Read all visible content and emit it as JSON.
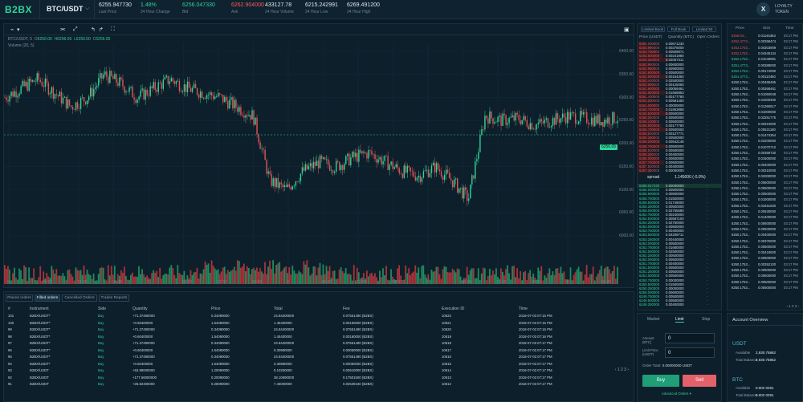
{
  "header": {
    "logo": "B2BX",
    "pair": "BTC/USDT",
    "stats": [
      {
        "value": "6255.947730",
        "label": "Last Price",
        "color": "#dfe8ee"
      },
      {
        "value": "1.48%",
        "label": "24 Hour Change",
        "color": "#2fd39a"
      },
      {
        "value": "6256.047330",
        "label": "Bid",
        "color": "#2fd39a"
      },
      {
        "value": "6262.904000",
        "label": "Ask",
        "color": "#ff5a5a"
      },
      {
        "value": "433127.78",
        "label": "24 Hour Volume",
        "color": "#dfe8ee"
      },
      {
        "value": "6215.242991",
        "label": "24 Hour Low",
        "color": "#dfe8ee"
      },
      {
        "value": "6269.491200",
        "label": "24 Hour High",
        "color": "#dfe8ee"
      }
    ],
    "loyalty": {
      "badge": "X",
      "line1": "LOYALTY",
      "line2": "TOKEN"
    }
  },
  "chart": {
    "toolbar": [
      "⌁",
      "▾",
      "⫘",
      "⤢",
      "↰",
      "↱",
      "⛶"
    ],
    "info": {
      "title": "BTC/USDT, 5",
      "o": "6250.00",
      "h": "6256.05",
      "l": "6250.00",
      "c": "6256.05"
    },
    "volume": "Volume (20, 5)",
    "price_tag": "6256.05",
    "x_ticks": [
      "9",
      "06:00",
      "12:00",
      "18:00",
      "2",
      "06:00",
      "12:00",
      "18:00",
      "3",
      "06:00",
      "12:00",
      "18:00",
      "4",
      "06:00",
      "12:00",
      "18:00",
      "5",
      "06:00"
    ],
    "y_ticks": [
      "6400.00",
      "6350.00",
      "6300.00",
      "6250.00",
      "6200.00",
      "6150.00",
      "6100.00",
      "6050.00",
      "6000.00"
    ]
  },
  "chart_data": {
    "type": "candlestick",
    "title": "BTC/USDT, 5",
    "series": [
      {
        "name": "BTC/USDT",
        "close": [
          6300,
          6320,
          6340,
          6310,
          6280,
          6300,
          6350,
          6330,
          6300,
          6320,
          6340,
          6320,
          6310,
          6300,
          6280,
          6260,
          6120,
          6100,
          6140,
          6160,
          6150,
          6170,
          6180,
          6160,
          6140,
          6130,
          6150,
          6120,
          6080,
          6260,
          6250,
          6255,
          6240,
          6250,
          6260,
          6255,
          6250,
          6256
        ]
      }
    ]
  },
  "orderbook": {
    "tabs": [
      "Limited Book",
      "Full Book",
      "Limited 50"
    ],
    "headers": [
      "Price (USDT)",
      "Quantity (BTC)",
      "Open Orders"
    ],
    "sells": [
      [
        "6264.000000",
        "0.00571230"
      ],
      [
        "6263.990000",
        "0.00375000"
      ],
      [
        "6263.750000",
        "0.00509971"
      ],
      [
        "6263.500000",
        "0.00241980"
      ],
      [
        "6263.250000",
        "0.02057311"
      ],
      [
        "6262.990000",
        "0.00600000"
      ],
      [
        "6262.950000",
        "0.00900000"
      ],
      [
        "6262.800000",
        "0.00500000"
      ],
      [
        "6262.500000",
        "0.00154350"
      ],
      [
        "6262.400000",
        "0.02500000"
      ],
      [
        "6262.000000",
        "0.00125050"
      ],
      [
        "6261.900000",
        "0.00059461"
      ],
      [
        "6261.550000",
        "0.01558853"
      ],
      [
        "6261.400000",
        "0.00177780"
      ],
      [
        "6261.200000",
        "0.00581450"
      ],
      [
        "6261.000000",
        "0.00000000"
      ],
      [
        "6260.750000",
        "0.01853858"
      ],
      [
        "6260.500000",
        "0.00500000"
      ],
      [
        "6260.250000",
        "0.00500000"
      ],
      [
        "6260.100000",
        "0.00500000"
      ],
      [
        "6259.900000",
        "0.00177780"
      ],
      [
        "6259.700000",
        "0.00500000"
      ],
      [
        "6259.500000",
        "0.00127771"
      ],
      [
        "6259.250000",
        "0.00500000"
      ],
      [
        "6259.000000",
        "0.00542148"
      ],
      [
        "6258.750000",
        "0.00500000"
      ],
      [
        "6258.500000",
        "0.00500000"
      ],
      [
        "6258.250000",
        "0.00400000"
      ],
      [
        "6258.000000",
        "0.00500000"
      ],
      [
        "6257.750000",
        "0.00500000"
      ],
      [
        "6257.500000",
        "0.00400000"
      ],
      [
        "6257.250000",
        "0.00000000"
      ]
    ],
    "spread": {
      "left": "spread",
      "right": "1.145000 (-0.0%)"
    },
    "buys": [
      [
        "6256.047330",
        "0.00000000"
      ],
      [
        "6256.000000",
        "0.00500000"
      ],
      [
        "6255.900000",
        "0.00500000"
      ],
      [
        "6255.750000",
        "0.01500000"
      ],
      [
        "6255.500000",
        "0.01748000"
      ],
      [
        "6255.250000",
        "0.00500000"
      ],
      [
        "6255.000000",
        "0.02765580"
      ],
      [
        "6254.750000",
        "0.00240000"
      ],
      [
        "6254.500000",
        "0.00587100"
      ],
      [
        "6254.250000",
        "0.02750000"
      ],
      [
        "6254.000000",
        "0.00800000"
      ],
      [
        "6253.750000",
        "0.00400000"
      ],
      [
        "6253.500000",
        "0.04208711"
      ],
      [
        "6253.250000",
        "0.00440000"
      ],
      [
        "6253.000000",
        "0.00500000"
      ],
      [
        "6252.750000",
        "0.01680000"
      ],
      [
        "6252.500000",
        "0.02500000"
      ],
      [
        "6252.250000",
        "0.00500000"
      ],
      [
        "6252.000000",
        "0.00500000"
      ],
      [
        "6251.750000",
        "0.00400000"
      ],
      [
        "6251.500000",
        "0.00500000"
      ],
      [
        "6251.250000",
        "0.00500000"
      ],
      [
        "6251.000000",
        "0.00500000"
      ],
      [
        "6250.750000",
        "0.00000000"
      ],
      [
        "6250.500000",
        "0.01500000"
      ],
      [
        "6250.250000",
        "0.00000000"
      ],
      [
        "6250.000000",
        "0.00600000"
      ],
      [
        "6249.750000",
        "0.00500000"
      ],
      [
        "6249.500000",
        "0.00500000"
      ],
      [
        "6249.250000",
        "0.00400000"
      ]
    ]
  },
  "trades": {
    "headers": [
      "Price",
      "Size",
      "Time"
    ],
    "rows": [
      [
        "6256.04...",
        "0.01145363",
        "03:17 PM",
        "sell"
      ],
      [
        "6252.4773...",
        "0.00358474",
        "03:17 PM",
        "sell"
      ],
      [
        "6252.1753...",
        "0.00303909",
        "03:17 PM",
        "sell"
      ],
      [
        "6252.1753...",
        "0.04345134",
        "03:17 PM",
        "sell"
      ],
      [
        "6252.1753...",
        "0.01049991",
        "03:17 PM",
        "buy"
      ],
      [
        "6251.4773...",
        "0.00388000",
        "03:17 PM",
        "buy"
      ],
      [
        "6252.1753...",
        "0.00174000",
        "03:17 PM",
        "buy"
      ],
      [
        "6251.4773...",
        "0.00110450",
        "03:17 PM",
        "buy"
      ],
      [
        "6250.1753...",
        "0.00486465",
        "03:17 PM",
        "neutral"
      ],
      [
        "6250.1753...",
        "0.00368461",
        "03:17 PM",
        "neutral"
      ],
      [
        "6250.1753...",
        "0.01050048",
        "03:17 PM",
        "neutral"
      ],
      [
        "6250.1753...",
        "0.01000300",
        "03:17 PM",
        "neutral"
      ],
      [
        "6250.1753...",
        "0.01360617",
        "03:17 PM",
        "neutral"
      ],
      [
        "6250.1753...",
        "0.01000000",
        "03:17 PM",
        "neutral"
      ],
      [
        "6250.1753...",
        "0.03251775",
        "03:17 PM",
        "neutral"
      ],
      [
        "6250.1753...",
        "0.00310000",
        "03:17 PM",
        "neutral"
      ],
      [
        "6250.1753...",
        "0.00521180",
        "03:17 PM",
        "neutral"
      ],
      [
        "6250.1753...",
        "0.01474354",
        "03:17 PM",
        "neutral"
      ],
      [
        "6250.1753...",
        "0.02200000",
        "03:17 PM",
        "neutral"
      ],
      [
        "6250.1753...",
        "0.01070710",
        "03:17 PM",
        "neutral"
      ],
      [
        "6250.1753...",
        "0.00359730",
        "03:17 PM",
        "neutral"
      ],
      [
        "6250.1753...",
        "0.01500000",
        "03:17 PM",
        "neutral"
      ],
      [
        "6250.1753...",
        "0.00400000",
        "03:17 PM",
        "neutral"
      ],
      [
        "6250.1753...",
        "0.00310000",
        "03:17 PM",
        "neutral"
      ],
      [
        "6250.1753...",
        "0.02000000",
        "03:17 PM",
        "neutral"
      ],
      [
        "6250.1753...",
        "0.00600000",
        "03:17 PM",
        "neutral"
      ],
      [
        "6250.1753...",
        "0.00500000",
        "03:17 PM",
        "neutral"
      ],
      [
        "6250.1753...",
        "0.00500000",
        "03:17 PM",
        "neutral"
      ],
      [
        "6250.1753...",
        "0.01000000",
        "03:17 PM",
        "neutral"
      ],
      [
        "6250.1753...",
        "0.03451500",
        "03:17 PM",
        "neutral"
      ],
      [
        "6250.1753...",
        "0.00530000",
        "03:17 PM",
        "neutral"
      ],
      [
        "6250.1753...",
        "0.01400000",
        "03:17 PM",
        "neutral"
      ],
      [
        "6250.1753...",
        "0.00600000",
        "03:17 PM",
        "neutral"
      ],
      [
        "6250.1753...",
        "0.00500000",
        "03:17 PM",
        "neutral"
      ],
      [
        "6250.1753...",
        "0.00400000",
        "03:17 PM",
        "neutral"
      ],
      [
        "6250.1753...",
        "0.00375000",
        "03:17 PM",
        "neutral"
      ],
      [
        "6250.1753...",
        "0.00600000",
        "03:17 PM",
        "neutral"
      ],
      [
        "6250.1753...",
        "0.00418000",
        "03:17 PM",
        "neutral"
      ],
      [
        "6250.1753...",
        "0.00500000",
        "03:17 PM",
        "neutral"
      ],
      [
        "6250.1753...",
        "0.00352100",
        "03:17 PM",
        "neutral"
      ],
      [
        "6250.1753...",
        "0.00500000",
        "03:17 PM",
        "neutral"
      ],
      [
        "6250.1753...",
        "0.00600000",
        "03:17 PM",
        "neutral"
      ],
      [
        "6250.1753...",
        "0.00500000",
        "03:17 PM",
        "neutral"
      ],
      [
        "6250.1753...",
        "0.00500000",
        "03:17 PM",
        "neutral"
      ]
    ],
    "pager": "‹ 1 2 3 ›"
  },
  "orders": {
    "tabs": [
      "Placed orders",
      "Filled orders",
      "Cancelled Orders",
      "Trades Reports"
    ],
    "active_tab": 1,
    "headers": [
      "#",
      "Instrument",
      "Side",
      "Quantity",
      "Price",
      "Total",
      "Fee",
      "Execution ID",
      "Time"
    ],
    "rows": [
      [
        "101",
        "B2BX/USDT*",
        "Buy",
        "+71.37490000",
        "0.34090000",
        "24.84400000",
        "0.07551490 (B2BX)",
        "10622",
        "2018-07-03 07:16 PM"
      ],
      [
        "100",
        "B2BX/USDT*",
        "Buy",
        "+0.60400000",
        "1.54090000",
        "1.45400000",
        "0.00160000 (B2BX)",
        "10621",
        "2018-07-03 07:16 PM"
      ],
      [
        "99",
        "B2BX/USDT*",
        "Buy",
        "+71.37490000",
        "0.34090000",
        "24.84400000",
        "0.07551490 (B2BX)",
        "10620",
        "2018-07-03 07:16 PM"
      ],
      [
        "98",
        "B2BX/USDT*",
        "Buy",
        "+0.60400000",
        "1.54090000",
        "1.45400000",
        "0.00160000 (B2BX)",
        "10619",
        "2018-07-03 07:16 PM"
      ],
      [
        "97",
        "B2BX/USDT*",
        "Buy",
        "+71.37490000",
        "0.34090000",
        "24.84400000",
        "0.07551490 (B2BX)",
        "10618",
        "2018-07-03 07:17 PM"
      ],
      [
        "96",
        "B2BX/USDT*",
        "Buy",
        "+0.60400000",
        "1.54090000",
        "0.30980000",
        "0.00060000 (B2BX)",
        "10617",
        "2018-07-03 07:17 PM"
      ],
      [
        "95",
        "B2BX/USDT*",
        "Buy",
        "+71.37490000",
        "0.34090000",
        "24.84400000",
        "0.07551490 (B2BX)",
        "10616",
        "2018-07-03 07:17 PM"
      ],
      [
        "94",
        "B2BX/USDT*",
        "Buy",
        "+0.60400000",
        "1.54090000",
        "0.30980000",
        "0.00060000 (B2BX)",
        "10615",
        "2018-07-03 07:17 PM"
      ],
      [
        "93",
        "B2BX/USDT",
        "Buy",
        "+63.88000000",
        "1.20090000",
        "0.10250000",
        "0.00510000 (B2BX)",
        "10614",
        "2018-07-03 07:17 PM"
      ],
      [
        "92",
        "B2BX/USDT",
        "Buy",
        "+177.66000000",
        "0.20090000",
        "38.10690000",
        "0.17501500 (B2BX)",
        "10613",
        "2018-07-03 07:17 PM"
      ],
      [
        "91",
        "B2BX/USDT",
        "Buy",
        "+25.82400000",
        "0.28090000",
        "7.46000000",
        "0.02539440 (B2BX)",
        "10612",
        "2018-07-03 07:17 PM"
      ]
    ],
    "pager": "‹ 1 2 3 ›"
  },
  "form": {
    "tabs": [
      "Market",
      "Limit",
      "Stop"
    ],
    "active_tab": 1,
    "amount_label": "Amount (BTC)",
    "amount_value": "0",
    "price_label": "Limit Price (USDT)",
    "price_value": "0",
    "total_label": "Order Total:",
    "total_value": "0.00000000 USDT",
    "buy": "Buy",
    "sell": "Sell",
    "advanced": "Advanced Orders ▾"
  },
  "account": {
    "title": "Account Overview",
    "currencies": [
      {
        "name": "USDT",
        "available_label": "Available",
        "available": "2,930.75862",
        "total_label": "Total Balance",
        "total": "2,930.75862"
      },
      {
        "name": "BTC",
        "available_label": "Available",
        "available": "0.002 0291",
        "total_label": "Total Balance",
        "total": "0.002 0291"
      }
    ]
  }
}
